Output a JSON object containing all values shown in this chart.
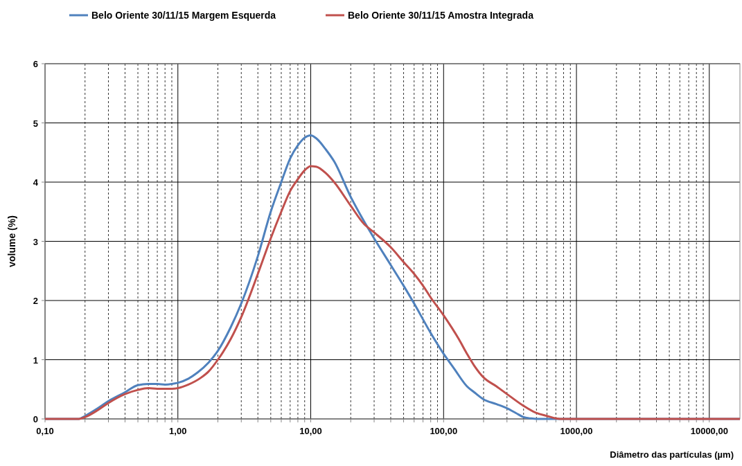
{
  "chart_data": {
    "type": "line",
    "xlabel": "Diâmetro das partículas (µm)",
    "ylabel": "volume (%)",
    "log": "x",
    "grid": true,
    "legend": "top",
    "marker": "none",
    "line_style": "solid",
    "xlim": [
      0.1,
      17000
    ],
    "ylim": [
      0,
      6
    ],
    "yticks": [
      0,
      1,
      2,
      3,
      4,
      5,
      6
    ],
    "xticks": [
      {
        "value": 0.1,
        "label": "0,10"
      },
      {
        "value": 0.2,
        "label": null
      },
      {
        "value": 0.3,
        "label": null
      },
      {
        "value": 0.4,
        "label": null
      },
      {
        "value": 0.5,
        "label": null
      },
      {
        "value": 0.6,
        "label": null
      },
      {
        "value": 0.7,
        "label": null
      },
      {
        "value": 0.8,
        "label": null
      },
      {
        "value": 0.9,
        "label": null
      },
      {
        "value": 1,
        "label": "1,00"
      },
      {
        "value": 2,
        "label": null
      },
      {
        "value": 3,
        "label": null
      },
      {
        "value": 4,
        "label": null
      },
      {
        "value": 5,
        "label": null
      },
      {
        "value": 6,
        "label": null
      },
      {
        "value": 7,
        "label": null
      },
      {
        "value": 8,
        "label": null
      },
      {
        "value": 9,
        "label": null
      },
      {
        "value": 10,
        "label": "10,00"
      },
      {
        "value": 20,
        "label": null
      },
      {
        "value": 30,
        "label": null
      },
      {
        "value": 40,
        "label": null
      },
      {
        "value": 50,
        "label": null
      },
      {
        "value": 60,
        "label": null
      },
      {
        "value": 70,
        "label": null
      },
      {
        "value": 80,
        "label": null
      },
      {
        "value": 90,
        "label": null
      },
      {
        "value": 100,
        "label": "100,00"
      },
      {
        "value": 200,
        "label": null
      },
      {
        "value": 300,
        "label": null
      },
      {
        "value": 400,
        "label": null
      },
      {
        "value": 500,
        "label": null
      },
      {
        "value": 600,
        "label": null
      },
      {
        "value": 700,
        "label": null
      },
      {
        "value": 800,
        "label": null
      },
      {
        "value": 900,
        "label": null
      },
      {
        "value": 1000,
        "label": "1000,00"
      },
      {
        "value": 2000,
        "label": null
      },
      {
        "value": 3000,
        "label": null
      },
      {
        "value": 4000,
        "label": null
      },
      {
        "value": 5000,
        "label": null
      },
      {
        "value": 6000,
        "label": null
      },
      {
        "value": 7000,
        "label": null
      },
      {
        "value": 8000,
        "label": null
      },
      {
        "value": 9000,
        "label": null
      },
      {
        "value": 10000,
        "label": "10000,00"
      }
    ],
    "series": [
      {
        "name": "Belo Oriente 30/11/15 Margem Esquerda",
        "color": "#4f81bd",
        "x": [
          0.1,
          0.18,
          0.2,
          0.25,
          0.3,
          0.4,
          0.5,
          0.6,
          0.7,
          0.8,
          0.9,
          1,
          1.2,
          1.4,
          1.7,
          2,
          2.5,
          3,
          4,
          5,
          6,
          7,
          8,
          9,
          10,
          11,
          13,
          15,
          20,
          25,
          30,
          40,
          50,
          60,
          80,
          100,
          120,
          150,
          170,
          200,
          250,
          300,
          350,
          400,
          450,
          500,
          17000
        ],
        "values": [
          0,
          0,
          0.05,
          0.18,
          0.3,
          0.45,
          0.57,
          0.59,
          0.59,
          0.58,
          0.59,
          0.61,
          0.68,
          0.78,
          0.95,
          1.15,
          1.55,
          1.95,
          2.75,
          3.5,
          4.0,
          4.4,
          4.62,
          4.75,
          4.79,
          4.74,
          4.55,
          4.35,
          3.75,
          3.35,
          3.05,
          2.6,
          2.25,
          1.95,
          1.45,
          1.1,
          0.85,
          0.55,
          0.45,
          0.33,
          0.25,
          0.18,
          0.1,
          0.03,
          0.01,
          0,
          0
        ]
      },
      {
        "name": "Belo Oriente 30/11/15 Amostra Integrada",
        "color": "#c0504d",
        "x": [
          0.1,
          0.18,
          0.2,
          0.25,
          0.3,
          0.4,
          0.5,
          0.6,
          0.7,
          0.8,
          0.9,
          1,
          1.2,
          1.5,
          1.7,
          2,
          2.5,
          3,
          4,
          5,
          6,
          7,
          8,
          9,
          10,
          11,
          13,
          15,
          20,
          25,
          30,
          40,
          50,
          60,
          70,
          80,
          100,
          130,
          150,
          170,
          200,
          250,
          300,
          400,
          500,
          600,
          700,
          800,
          17000
        ],
        "values": [
          0,
          0,
          0.03,
          0.15,
          0.27,
          0.42,
          0.49,
          0.52,
          0.51,
          0.51,
          0.51,
          0.52,
          0.58,
          0.7,
          0.8,
          1.0,
          1.35,
          1.72,
          2.45,
          3.05,
          3.5,
          3.85,
          4.05,
          4.2,
          4.27,
          4.26,
          4.15,
          4.0,
          3.6,
          3.3,
          3.15,
          2.9,
          2.65,
          2.45,
          2.25,
          2.05,
          1.75,
          1.35,
          1.1,
          0.9,
          0.7,
          0.55,
          0.42,
          0.22,
          0.1,
          0.05,
          0.01,
          0,
          0
        ]
      }
    ]
  }
}
